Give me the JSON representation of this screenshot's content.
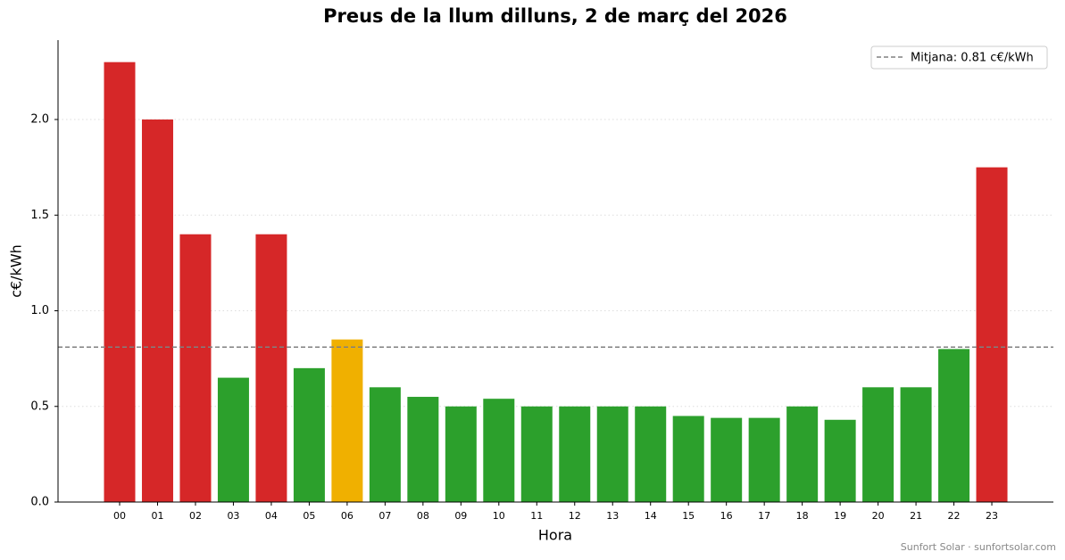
{
  "chart_data": {
    "type": "bar",
    "title": "Preus de la llum dilluns, 2 de març del 2026",
    "x_label": "Hora",
    "y_label": "c€/kWh",
    "categories": [
      "00",
      "01",
      "02",
      "03",
      "04",
      "05",
      "06",
      "07",
      "08",
      "09",
      "10",
      "11",
      "12",
      "13",
      "14",
      "15",
      "16",
      "17",
      "18",
      "19",
      "20",
      "21",
      "22",
      "23"
    ],
    "values": [
      2.3,
      2.0,
      1.4,
      0.65,
      1.4,
      0.7,
      0.85,
      0.6,
      0.55,
      0.5,
      0.54,
      0.5,
      0.5,
      0.5,
      0.5,
      0.45,
      0.44,
      0.44,
      0.5,
      0.43,
      0.6,
      0.6,
      0.8,
      1.75
    ],
    "colors": [
      "#d62728",
      "#d62728",
      "#d62728",
      "#2ca02c",
      "#d62728",
      "#2ca02c",
      "#f0b000",
      "#2ca02c",
      "#2ca02c",
      "#2ca02c",
      "#2ca02c",
      "#2ca02c",
      "#2ca02c",
      "#2ca02c",
      "#2ca02c",
      "#2ca02c",
      "#2ca02c",
      "#2ca02c",
      "#2ca02c",
      "#2ca02c",
      "#2ca02c",
      "#2ca02c",
      "#2ca02c",
      "#d62728"
    ],
    "mean": 0.81,
    "mean_label": "Mitjana: 0.81 c€/kWh",
    "mean_color": "#808080",
    "ylim": [
      0,
      2.415
    ],
    "yticks": [
      {
        "value": 0,
        "label": "0.0"
      },
      0.5,
      {
        "value": 1,
        "label": "1.0"
      },
      1.5,
      {
        "value": 2,
        "label": "2.0"
      }
    ],
    "grid": true,
    "legend": "upper right",
    "footer": "Sunfort Solar · sunfortsolar.com"
  }
}
